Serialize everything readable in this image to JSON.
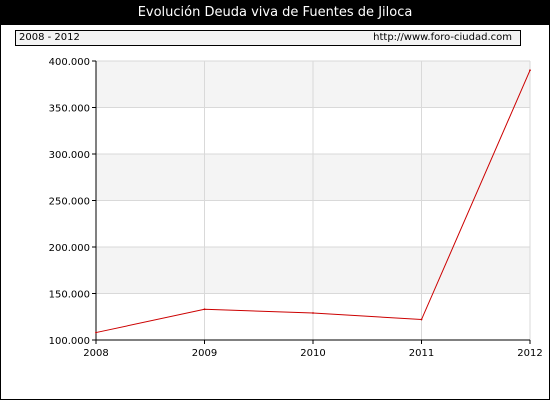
{
  "title": "Evolución Deuda viva de Fuentes de Jiloca",
  "period_label": "2008 - 2012",
  "source_url": "http://www.foro-ciudad.com",
  "colors": {
    "series": "#cc0000",
    "band": "#f4f4f4",
    "grid": "#d9d9d9",
    "header_bg": "#000000"
  },
  "chart_data": {
    "type": "line",
    "title": "Evolución Deuda viva de Fuentes de Jiloca",
    "xlabel": "",
    "ylabel": "",
    "x": [
      "2008",
      "2009",
      "2010",
      "2011",
      "2012"
    ],
    "series": [
      {
        "values": [
          108000,
          133000,
          129000,
          122000,
          390000
        ]
      }
    ],
    "ylim": [
      100000,
      400000
    ],
    "yticks": [
      100000,
      150000,
      200000,
      250000,
      300000,
      350000,
      400000
    ],
    "ytick_labels": [
      "100.000",
      "150.000",
      "200.000",
      "250.000",
      "300.000",
      "350.000",
      "400.000"
    ],
    "xtick_labels": [
      "2008",
      "2009",
      "2010",
      "2011",
      "2012"
    ],
    "grid": true,
    "alternating_bands": true
  }
}
